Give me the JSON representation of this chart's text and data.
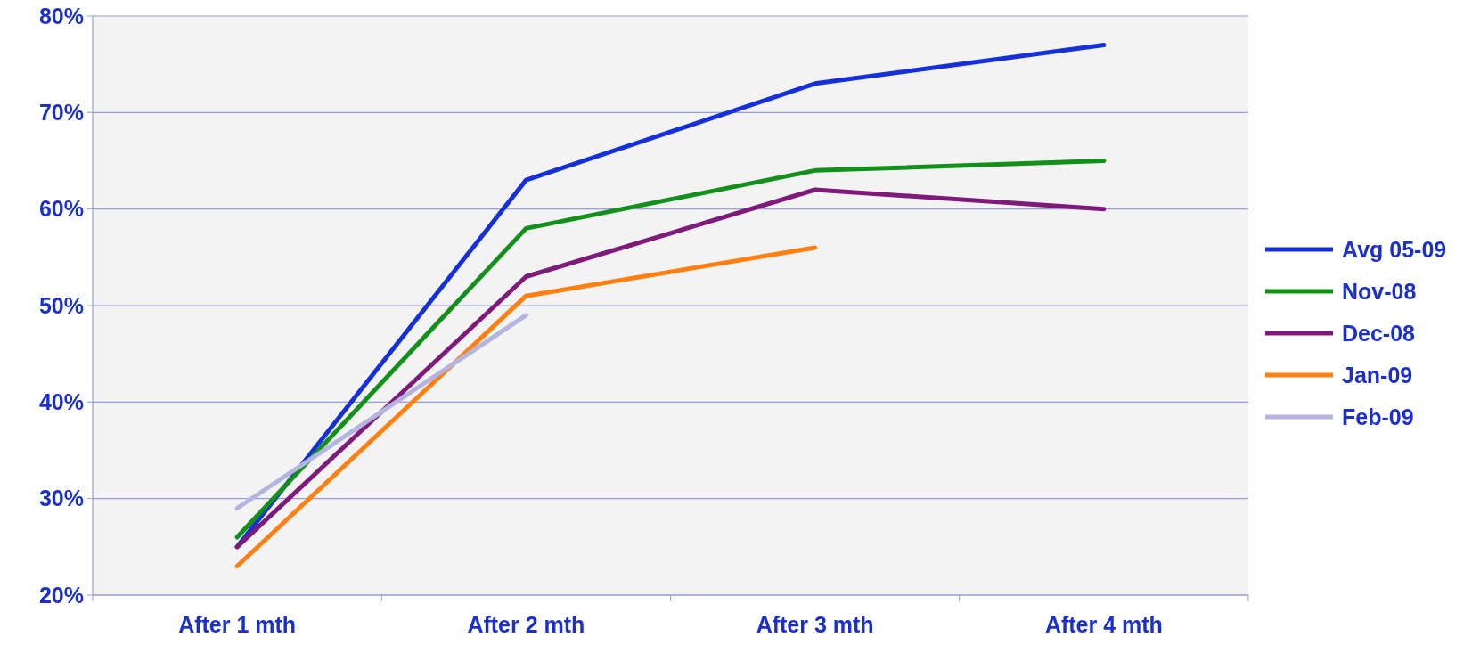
{
  "chart_data": {
    "type": "line",
    "categories": [
      "After 1 mth",
      "After 2 mth",
      "After 3 mth",
      "After 4 mth"
    ],
    "series": [
      {
        "name": "Avg 05-09",
        "color": "#1530d8",
        "values": [
          25,
          63,
          73,
          77
        ]
      },
      {
        "name": "Nov-08",
        "color": "#12901a",
        "values": [
          26,
          58,
          64,
          65
        ]
      },
      {
        "name": "Dec-08",
        "color": "#7d1a7a",
        "values": [
          25,
          53,
          62,
          60
        ]
      },
      {
        "name": "Jan-09",
        "color": "#ff7f10",
        "values": [
          23,
          51,
          56,
          null
        ]
      },
      {
        "name": "Feb-09",
        "color": "#b3b5e0",
        "values": [
          29,
          49,
          null,
          null
        ]
      }
    ],
    "ylim": [
      20,
      80
    ],
    "yticks": [
      {
        "value": 20,
        "label": "20%"
      },
      {
        "value": 30,
        "label": "30%"
      },
      {
        "value": 40,
        "label": "40%"
      },
      {
        "value": 50,
        "label": "50%"
      },
      {
        "value": 60,
        "label": "60%"
      },
      {
        "value": 70,
        "label": "70%"
      },
      {
        "value": 80,
        "label": "80%"
      }
    ],
    "grid": "y",
    "legend": "right",
    "marker": "none",
    "line_style": "solid"
  }
}
